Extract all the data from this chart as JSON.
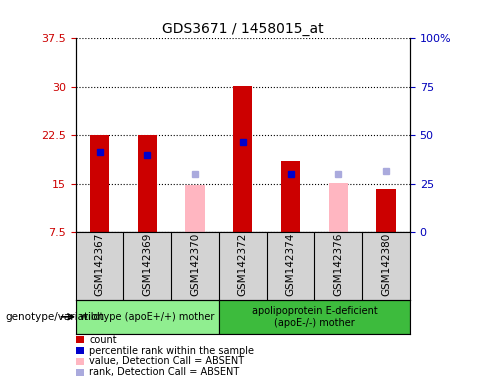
{
  "title": "GDS3671 / 1458015_at",
  "samples": [
    "GSM142367",
    "GSM142369",
    "GSM142370",
    "GSM142372",
    "GSM142374",
    "GSM142376",
    "GSM142380"
  ],
  "count_values": [
    22.5,
    22.5,
    null,
    30.2,
    18.5,
    null,
    14.2
  ],
  "count_absent_values": [
    null,
    null,
    14.8,
    null,
    null,
    15.2,
    null
  ],
  "percentile_values": [
    20.0,
    19.5,
    null,
    21.5,
    16.5,
    null,
    null
  ],
  "percentile_absent_values": [
    null,
    null,
    16.5,
    null,
    null,
    16.5,
    17.0
  ],
  "ylim_left": [
    7.5,
    37.5
  ],
  "ylim_right": [
    0,
    100
  ],
  "yticks_left": [
    7.5,
    15.0,
    22.5,
    30.0,
    37.5
  ],
  "yticks_right": [
    0,
    25,
    50,
    75,
    100
  ],
  "ytick_labels_left": [
    "7.5",
    "15",
    "22.5",
    "30",
    "37.5"
  ],
  "ytick_labels_right": [
    "0",
    "25",
    "50",
    "75",
    "100%"
  ],
  "groups": [
    {
      "label": "wildtype (apoE+/+) mother",
      "samples": [
        0,
        1,
        2
      ],
      "color": "#90ee90"
    },
    {
      "label": "apolipoprotein E-deficient\n(apoE-/-) mother",
      "samples": [
        3,
        4,
        5,
        6
      ],
      "color": "#3dbb3d"
    }
  ],
  "bar_width": 0.4,
  "count_color": "#cc0000",
  "count_absent_color": "#ffb6c1",
  "percentile_color": "#0000cc",
  "percentile_absent_color": "#aaaadd",
  "bg_color": "#d3d3d3",
  "left_tick_color": "#cc0000",
  "right_tick_color": "#0000bb",
  "legend_items": [
    {
      "label": "count",
      "color": "#cc0000"
    },
    {
      "label": "percentile rank within the sample",
      "color": "#0000cc"
    },
    {
      "label": "value, Detection Call = ABSENT",
      "color": "#ffb6c1"
    },
    {
      "label": "rank, Detection Call = ABSENT",
      "color": "#aaaadd"
    }
  ],
  "bottom_label": "genotype/variation"
}
